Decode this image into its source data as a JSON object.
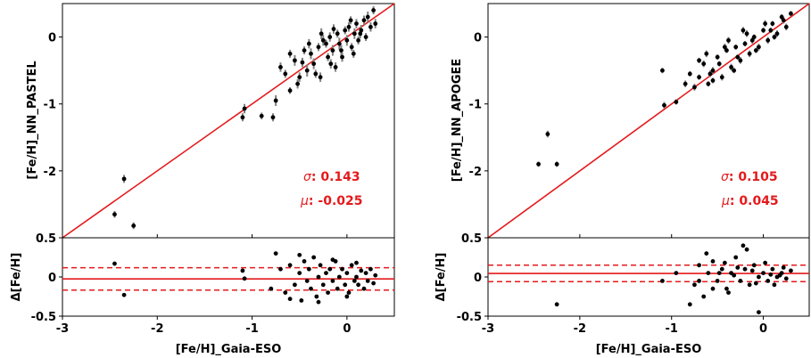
{
  "colors": {
    "fit": "#e41a1c",
    "point": "#000000",
    "errorbar": "#808080",
    "stat": "#e41a1c"
  },
  "chart_data": [
    {
      "type": "scatter",
      "title": "",
      "xlabel": "[Fe/H]_Gaia-ESO",
      "ylabel": "[Fe/H]_NN_PASTEL",
      "xlim": [
        -3,
        0.5
      ],
      "ylim": [
        -3,
        0.5
      ],
      "xticks": [
        "-3",
        "-2",
        "-1",
        "0"
      ],
      "yticks": [
        "-2",
        "-1",
        "0"
      ],
      "stats": {
        "sigma_label": "σ",
        "sigma_value": ": 0.143",
        "mu_label": "μ",
        "mu_value": ": -0.025"
      },
      "points": [
        [
          -2.45,
          -2.65,
          0.05
        ],
        [
          -2.35,
          -2.12,
          0.06
        ],
        [
          -2.25,
          -2.82,
          0.05
        ],
        [
          -1.1,
          -1.2,
          0.06
        ],
        [
          -1.08,
          -1.07,
          0.07
        ],
        [
          -0.9,
          -1.18,
          0.05
        ],
        [
          -0.78,
          -1.2,
          0.06
        ],
        [
          -0.75,
          -0.95,
          0.08
        ],
        [
          -0.7,
          -0.45,
          0.07
        ],
        [
          -0.65,
          -0.55,
          0.06
        ],
        [
          -0.6,
          -0.8,
          0.05
        ],
        [
          -0.55,
          -0.35,
          0.08
        ],
        [
          -0.5,
          -0.6,
          0.07
        ],
        [
          -0.45,
          -0.2,
          0.06
        ],
        [
          -0.42,
          -0.5,
          0.09
        ],
        [
          -0.4,
          -0.1,
          0.07
        ],
        [
          -0.35,
          -0.4,
          0.08
        ],
        [
          -0.3,
          -0.15,
          0.06
        ],
        [
          -0.28,
          -0.6,
          0.07
        ],
        [
          -0.25,
          -0.05,
          0.08
        ],
        [
          -0.2,
          -0.3,
          0.06
        ],
        [
          -0.18,
          0.0,
          0.07
        ],
        [
          -0.15,
          -0.2,
          0.08
        ],
        [
          -0.12,
          -0.45,
          0.07
        ],
        [
          -0.1,
          0.05,
          0.06
        ],
        [
          -0.08,
          -0.1,
          0.09
        ],
        [
          -0.05,
          -0.3,
          0.07
        ],
        [
          -0.02,
          0.1,
          0.06
        ],
        [
          0.0,
          -0.05,
          0.08
        ],
        [
          0.02,
          0.15,
          0.07
        ],
        [
          0.05,
          -0.15,
          0.06
        ],
        [
          0.08,
          0.05,
          0.08
        ],
        [
          0.1,
          0.2,
          0.07
        ],
        [
          0.12,
          -0.05,
          0.06
        ],
        [
          0.15,
          0.1,
          0.08
        ],
        [
          0.18,
          0.25,
          0.07
        ],
        [
          0.2,
          0.0,
          0.06
        ],
        [
          0.22,
          0.3,
          0.08
        ],
        [
          0.25,
          0.15,
          0.07
        ],
        [
          0.28,
          0.4,
          0.06
        ],
        [
          0.3,
          0.2,
          0.07
        ],
        [
          -0.6,
          -0.25,
          0.06
        ],
        [
          -0.52,
          -0.7,
          0.07
        ],
        [
          -0.38,
          -0.25,
          0.08
        ],
        [
          -0.22,
          -0.1,
          0.06
        ],
        [
          -0.14,
          0.12,
          0.07
        ],
        [
          -0.06,
          -0.2,
          0.08
        ],
        [
          0.04,
          0.25,
          0.06
        ],
        [
          0.14,
          0.05,
          0.07
        ],
        [
          -0.33,
          -0.55,
          0.06
        ],
        [
          -0.47,
          -0.38,
          0.07
        ],
        [
          -0.27,
          0.05,
          0.08
        ],
        [
          0.07,
          -0.25,
          0.06
        ],
        [
          -0.17,
          -0.4,
          0.07
        ]
      ],
      "residual": {
        "ylabel": "Δ[Fe/H]",
        "ylim": [
          -0.5,
          0.5
        ],
        "yticks": [
          "-0.5",
          "0",
          "0.5"
        ],
        "mean": -0.025,
        "upper": 0.118,
        "lower": -0.168,
        "points": [
          [
            -2.45,
            0.17
          ],
          [
            -2.35,
            -0.23
          ],
          [
            -1.1,
            0.08
          ],
          [
            -1.08,
            -0.02
          ],
          [
            -0.8,
            -0.15
          ],
          [
            -0.75,
            0.3
          ],
          [
            -0.7,
            0.1
          ],
          [
            -0.65,
            -0.2
          ],
          [
            -0.6,
            0.15
          ],
          [
            -0.55,
            -0.1
          ],
          [
            -0.5,
            0.05
          ],
          [
            -0.48,
            -0.3
          ],
          [
            -0.45,
            0.2
          ],
          [
            -0.42,
            -0.05
          ],
          [
            -0.4,
            0.1
          ],
          [
            -0.38,
            -0.15
          ],
          [
            -0.35,
            0.25
          ],
          [
            -0.32,
            -0.25
          ],
          [
            -0.3,
            0.0
          ],
          [
            -0.28,
            0.15
          ],
          [
            -0.25,
            -0.1
          ],
          [
            -0.22,
            0.05
          ],
          [
            -0.2,
            -0.2
          ],
          [
            -0.18,
            0.1
          ],
          [
            -0.15,
            -0.05
          ],
          [
            -0.12,
            0.2
          ],
          [
            -0.1,
            -0.15
          ],
          [
            -0.08,
            0.0
          ],
          [
            -0.05,
            0.1
          ],
          [
            -0.02,
            -0.1
          ],
          [
            0.0,
            0.05
          ],
          [
            0.02,
            -0.2
          ],
          [
            0.05,
            0.15
          ],
          [
            0.08,
            -0.05
          ],
          [
            0.1,
            0.0
          ],
          [
            0.12,
            -0.1
          ],
          [
            0.15,
            0.08
          ],
          [
            0.18,
            -0.15
          ],
          [
            0.2,
            0.05
          ],
          [
            0.22,
            -0.05
          ],
          [
            0.25,
            0.1
          ],
          [
            0.28,
            -0.08
          ],
          [
            0.3,
            0.02
          ],
          [
            -0.6,
            -0.28
          ],
          [
            -0.5,
            0.28
          ],
          [
            -0.3,
            -0.32
          ],
          [
            -0.15,
            0.22
          ],
          [
            0.0,
            -0.25
          ],
          [
            0.1,
            0.18
          ]
        ]
      }
    },
    {
      "type": "scatter",
      "title": "",
      "xlabel": "[Fe/H]_Gaia-ESO",
      "ylabel": "[Fe/H]_NN_APOGEE",
      "xlim": [
        -3,
        0.5
      ],
      "ylim": [
        -3,
        0.5
      ],
      "xticks": [
        "-3",
        "-2",
        "-1",
        "0"
      ],
      "yticks": [
        "-2",
        "-1",
        "0"
      ],
      "stats": {
        "sigma_label": "σ",
        "sigma_value": ": 0.105",
        "mu_label": "μ",
        "mu_value": ": 0.045"
      },
      "points": [
        [
          -2.45,
          -1.9,
          0.04
        ],
        [
          -2.35,
          -1.45,
          0.05
        ],
        [
          -2.25,
          -1.9,
          0.04
        ],
        [
          -1.1,
          -0.5,
          0.04
        ],
        [
          -1.08,
          -1.02,
          0.05
        ],
        [
          -0.95,
          -0.97,
          0.04
        ],
        [
          -0.85,
          -0.7,
          0.05
        ],
        [
          -0.8,
          -0.55,
          0.04
        ],
        [
          -0.75,
          -0.75,
          0.05
        ],
        [
          -0.7,
          -0.6,
          0.04
        ],
        [
          -0.65,
          -0.4,
          0.05
        ],
        [
          -0.6,
          -0.7,
          0.04
        ],
        [
          -0.55,
          -0.5,
          0.05
        ],
        [
          -0.5,
          -0.3,
          0.04
        ],
        [
          -0.45,
          -0.6,
          0.05
        ],
        [
          -0.4,
          -0.2,
          0.04
        ],
        [
          -0.35,
          -0.45,
          0.05
        ],
        [
          -0.3,
          -0.15,
          0.04
        ],
        [
          -0.25,
          -0.35,
          0.05
        ],
        [
          -0.2,
          -0.1,
          0.04
        ],
        [
          -0.15,
          -0.25,
          0.05
        ],
        [
          -0.1,
          0.0,
          0.04
        ],
        [
          -0.05,
          -0.15,
          0.05
        ],
        [
          0.0,
          0.1,
          0.04
        ],
        [
          0.05,
          -0.05,
          0.05
        ],
        [
          0.1,
          0.2,
          0.04
        ],
        [
          0.15,
          0.05,
          0.05
        ],
        [
          0.2,
          0.3,
          0.04
        ],
        [
          0.25,
          0.15,
          0.05
        ],
        [
          0.3,
          0.35,
          0.04
        ],
        [
          -0.62,
          -0.25,
          0.05
        ],
        [
          -0.48,
          -0.4,
          0.04
        ],
        [
          -0.38,
          -0.05,
          0.05
        ],
        [
          -0.28,
          -0.3,
          0.04
        ],
        [
          -0.18,
          0.05,
          0.05
        ],
        [
          -0.08,
          -0.2,
          0.04
        ],
        [
          0.02,
          0.2,
          0.05
        ],
        [
          0.12,
          0.0,
          0.04
        ],
        [
          0.22,
          0.25,
          0.05
        ],
        [
          -0.55,
          -0.65,
          0.04
        ],
        [
          -0.42,
          -0.15,
          0.05
        ],
        [
          -0.32,
          -0.5,
          0.04
        ],
        [
          -0.12,
          -0.05,
          0.05
        ],
        [
          0.08,
          0.1,
          0.04
        ],
        [
          -0.22,
          0.1,
          0.05
        ],
        [
          -0.7,
          -0.35,
          0.04
        ],
        [
          -0.58,
          -0.55,
          0.05
        ]
      ],
      "residual": {
        "ylabel": "Δ[Fe/H]",
        "ylim": [
          -0.5,
          0.5
        ],
        "yticks": [
          "-0.5",
          "0",
          "0.5"
        ],
        "mean": 0.045,
        "upper": 0.15,
        "lower": -0.06,
        "points": [
          [
            -2.25,
            -0.35
          ],
          [
            -1.1,
            -0.05
          ],
          [
            -0.95,
            0.05
          ],
          [
            -0.8,
            -0.35
          ],
          [
            -0.75,
            -0.1
          ],
          [
            -0.7,
            0.15
          ],
          [
            -0.65,
            -0.25
          ],
          [
            -0.6,
            0.05
          ],
          [
            -0.55,
            0.2
          ],
          [
            -0.5,
            -0.05
          ],
          [
            -0.45,
            0.1
          ],
          [
            -0.4,
            -0.15
          ],
          [
            -0.35,
            0.05
          ],
          [
            -0.3,
            0.25
          ],
          [
            -0.25,
            -0.05
          ],
          [
            -0.2,
            0.1
          ],
          [
            -0.15,
            -0.1
          ],
          [
            -0.1,
            0.15
          ],
          [
            -0.05,
            0.0
          ],
          [
            0.0,
            0.05
          ],
          [
            0.05,
            -0.05
          ],
          [
            0.1,
            0.1
          ],
          [
            0.15,
            0.0
          ],
          [
            0.2,
            0.05
          ],
          [
            0.25,
            -0.02
          ],
          [
            0.3,
            0.08
          ],
          [
            -0.62,
            0.3
          ],
          [
            -0.48,
            0.05
          ],
          [
            -0.38,
            -0.2
          ],
          [
            -0.28,
            0.12
          ],
          [
            -0.18,
            0.35
          ],
          [
            -0.08,
            -0.08
          ],
          [
            0.02,
            0.18
          ],
          [
            0.12,
            -0.1
          ],
          [
            0.22,
            0.12
          ],
          [
            -0.55,
            -0.15
          ],
          [
            -0.42,
            0.18
          ],
          [
            -0.32,
            0.02
          ],
          [
            -0.12,
            0.08
          ],
          [
            0.08,
            0.03
          ],
          [
            -0.05,
            -0.45
          ],
          [
            -0.22,
            0.4
          ],
          [
            0.18,
            0.02
          ],
          [
            -0.7,
            -0.05
          ]
        ]
      }
    }
  ]
}
